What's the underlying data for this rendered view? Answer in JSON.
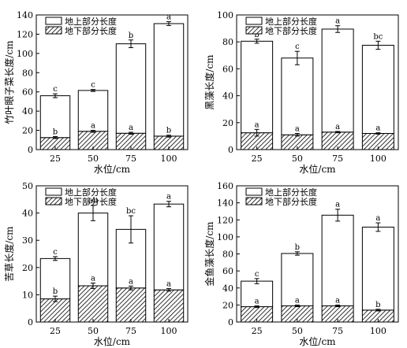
{
  "chart_data": [
    {
      "type": "bar",
      "stacked": true,
      "categories": [
        "25",
        "50",
        "75",
        "100"
      ],
      "xlabel": "水位/cm",
      "ylabel": "竹叶眼子菜长度/cm",
      "ylim": [
        0,
        140
      ],
      "yticks": [
        0,
        20,
        40,
        60,
        80,
        100,
        120,
        140
      ],
      "legend_position": "top-left",
      "series": [
        {
          "name": "地上部分长度",
          "pattern": "none",
          "values": [
            43.5,
            42.5,
            93,
            117
          ],
          "error": [
            2,
            1,
            4,
            2
          ],
          "sig": [
            "c",
            "c",
            "b",
            "a"
          ]
        },
        {
          "name": "地下部分长度",
          "pattern": "hatch",
          "values": [
            12.5,
            19,
            17,
            14
          ],
          "error": [
            1,
            1,
            1,
            1
          ],
          "sig": [
            "b",
            "a",
            "a",
            "b"
          ]
        }
      ]
    },
    {
      "type": "bar",
      "stacked": true,
      "categories": [
        "25",
        "50",
        "75",
        "100"
      ],
      "xlabel": "水位/cm",
      "ylabel": "黑藻长度/cm",
      "ylim": [
        0,
        100
      ],
      "yticks": [
        0,
        20,
        40,
        60,
        80,
        100
      ],
      "legend_position": "top-right",
      "series": [
        {
          "name": "地上部分长度",
          "pattern": "none",
          "values": [
            68,
            57,
            76.5,
            65.5
          ],
          "error": [
            1.5,
            5,
            2.5,
            3
          ],
          "sig": [
            "b",
            "c",
            "a",
            "bc"
          ]
        },
        {
          "name": "地下部分长度",
          "pattern": "hatch",
          "values": [
            12.5,
            11,
            13,
            12
          ],
          "error": [
            2.5,
            1,
            0.5,
            0.5
          ],
          "sig": [
            "a",
            "a",
            "a",
            "a"
          ]
        }
      ]
    },
    {
      "type": "bar",
      "stacked": true,
      "categories": [
        "25",
        "50",
        "75",
        "100"
      ],
      "xlabel": "水位/cm",
      "ylabel": "苦草长度/cm",
      "ylim": [
        0,
        50
      ],
      "yticks": [
        0,
        10,
        20,
        30,
        40,
        50
      ],
      "legend_position": "top-right",
      "series": [
        {
          "name": "地上部分长度",
          "pattern": "none",
          "values": [
            14.8,
            26.7,
            21.5,
            31.5
          ],
          "error": [
            0.7,
            2.8,
            5,
            1
          ],
          "sig": [
            "c",
            "ab",
            "bc",
            "a"
          ]
        },
        {
          "name": "地下部分长度",
          "pattern": "hatch",
          "values": [
            8.5,
            13.3,
            12.5,
            11.8
          ],
          "error": [
            1,
            1,
            0.7,
            0.5
          ],
          "sig": [
            "b",
            "a",
            "a",
            "a"
          ]
        }
      ]
    },
    {
      "type": "bar",
      "stacked": true,
      "categories": [
        "25",
        "50",
        "75",
        "100"
      ],
      "xlabel": "水位/cm",
      "ylabel": "金鱼藻长度/cm",
      "ylim": [
        0,
        160
      ],
      "yticks": [
        0,
        20,
        40,
        60,
        80,
        100,
        120,
        140,
        160
      ],
      "legend_position": "top-right",
      "series": [
        {
          "name": "地上部分长度",
          "pattern": "none",
          "values": [
            30,
            61.5,
            106.5,
            97.5
          ],
          "error": [
            3,
            2,
            7,
            5
          ],
          "sig": [
            "c",
            "b",
            "a",
            "a"
          ]
        },
        {
          "name": "地下部分长度",
          "pattern": "hatch",
          "values": [
            18,
            19,
            19,
            14
          ],
          "error": [
            1,
            1,
            1,
            1
          ],
          "sig": [
            "a",
            "a",
            "a",
            "b"
          ]
        }
      ]
    }
  ]
}
